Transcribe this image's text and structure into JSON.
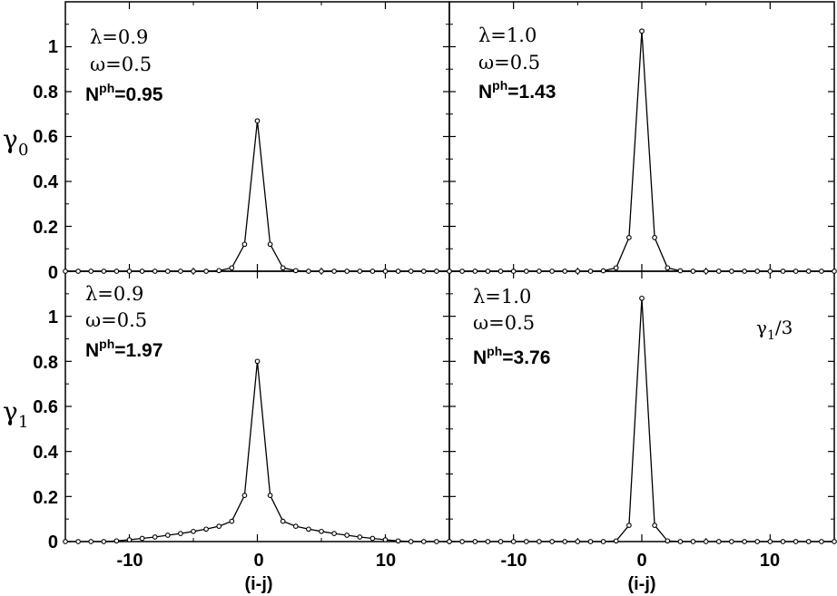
{
  "chart_data": [
    {
      "type": "line",
      "panel": "top-left",
      "ylabel": "γ",
      "ylabel_sub": "0",
      "annotations": {
        "lambda": "λ=0.9",
        "omega": "ω=0.5",
        "nph_label": "N",
        "nph_sup": "ph",
        "nph_value": "=0.95"
      },
      "xlim": [
        -15,
        15
      ],
      "ylim": [
        0,
        1.2
      ],
      "x": [
        -15,
        -14,
        -13,
        -12,
        -11,
        -10,
        -9,
        -8,
        -7,
        -6,
        -5,
        -4,
        -3,
        -2,
        -1,
        0,
        1,
        2,
        3,
        4,
        5,
        6,
        7,
        8,
        9,
        10,
        11,
        12,
        13,
        14,
        15
      ],
      "y": [
        0,
        0,
        0,
        0,
        0,
        0,
        0,
        0,
        0,
        0,
        0,
        0,
        0.003,
        0.015,
        0.12,
        0.67,
        0.12,
        0.015,
        0.003,
        0,
        0,
        0,
        0,
        0,
        0,
        0,
        0,
        0,
        0,
        0,
        0
      ]
    },
    {
      "type": "line",
      "panel": "top-right",
      "annotations": {
        "lambda": "λ=1.0",
        "omega": "ω=0.5",
        "nph_label": "N",
        "nph_sup": "ph",
        "nph_value": "=1.43"
      },
      "xlim": [
        -15,
        15
      ],
      "ylim": [
        0,
        1.2
      ],
      "x": [
        -15,
        -14,
        -13,
        -12,
        -11,
        -10,
        -9,
        -8,
        -7,
        -6,
        -5,
        -4,
        -3,
        -2,
        -1,
        0,
        1,
        2,
        3,
        4,
        5,
        6,
        7,
        8,
        9,
        10,
        11,
        12,
        13,
        14,
        15
      ],
      "y": [
        0,
        0,
        0,
        0,
        0,
        0,
        0,
        0,
        0,
        0,
        0,
        0,
        0.002,
        0.015,
        0.15,
        1.07,
        0.15,
        0.015,
        0.002,
        0,
        0,
        0,
        0,
        0,
        0,
        0,
        0,
        0,
        0,
        0,
        0
      ]
    },
    {
      "type": "line",
      "panel": "bottom-left",
      "ylabel": "γ",
      "ylabel_sub": "1",
      "annotations": {
        "lambda": "λ=0.9",
        "omega": "ω=0.5",
        "nph_label": "N",
        "nph_sup": "ph",
        "nph_value": "=1.97"
      },
      "xlim": [
        -15,
        15
      ],
      "ylim": [
        0,
        1.2
      ],
      "xlabel": "(i-j)",
      "x": [
        -15,
        -14,
        -13,
        -12,
        -11,
        -10,
        -9,
        -8,
        -7,
        -6,
        -5,
        -4,
        -3,
        -2,
        -1,
        0,
        1,
        2,
        3,
        4,
        5,
        6,
        7,
        8,
        9,
        10,
        11,
        12,
        13,
        14,
        15
      ],
      "y": [
        0,
        0,
        0,
        0,
        0.003,
        0.008,
        0.014,
        0.02,
        0.028,
        0.036,
        0.045,
        0.055,
        0.068,
        0.09,
        0.205,
        0.8,
        0.205,
        0.09,
        0.068,
        0.055,
        0.045,
        0.036,
        0.028,
        0.02,
        0.014,
        0.008,
        0.003,
        0,
        0,
        0,
        0
      ]
    },
    {
      "type": "line",
      "panel": "bottom-right",
      "annotations": {
        "lambda": "λ=1.0",
        "omega": "ω=0.5",
        "nph_label": "N",
        "nph_sup": "ph",
        "nph_value": "=3.76"
      },
      "note": {
        "symbol": "γ",
        "sub": "1",
        "rest": "/3"
      },
      "xlim": [
        -15,
        15
      ],
      "ylim": [
        0,
        1.2
      ],
      "xlabel": "(i-j)",
      "x": [
        -15,
        -14,
        -13,
        -12,
        -11,
        -10,
        -9,
        -8,
        -7,
        -6,
        -5,
        -4,
        -3,
        -2,
        -1,
        0,
        1,
        2,
        3,
        4,
        5,
        6,
        7,
        8,
        9,
        10,
        11,
        12,
        13,
        14,
        15
      ],
      "y": [
        0,
        0,
        0,
        0,
        0,
        0,
        0,
        0,
        0,
        0,
        0,
        0,
        0,
        0.003,
        0.072,
        1.08,
        0.072,
        0.003,
        0,
        0,
        0,
        0,
        0,
        0,
        0,
        0,
        0,
        0,
        0,
        0,
        0
      ]
    }
  ],
  "axes": {
    "y_tick_labels": [
      "0",
      "0.2",
      "0.4",
      "0.6",
      "0.8",
      "1"
    ],
    "y_tick_values": [
      0,
      0.2,
      0.4,
      0.6,
      0.8,
      1.0
    ],
    "x_tick_labels": [
      "-10",
      "0",
      "10"
    ],
    "x_tick_values": [
      -10,
      0,
      10
    ],
    "x_minor_values": [
      -15,
      -5,
      5,
      15
    ],
    "xlabel": "(i-j)"
  }
}
